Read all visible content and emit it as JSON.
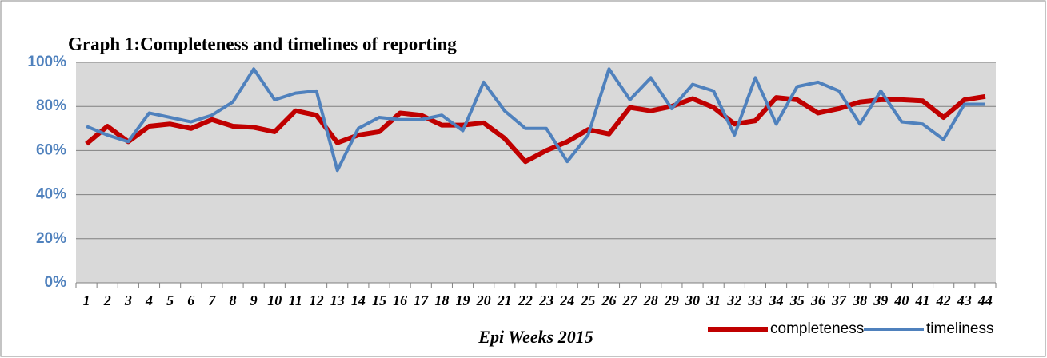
{
  "chart_data": {
    "type": "line",
    "title": "Graph 1:Completeness and timelines of reporting",
    "x_label": "Epi Weeks 2015",
    "categories": [
      "1",
      "2",
      "3",
      "4",
      "5",
      "6",
      "7",
      "8",
      "9",
      "10",
      "11",
      "12",
      "13",
      "14",
      "15",
      "16",
      "17",
      "18",
      "19",
      "20",
      "21",
      "22",
      "23",
      "24",
      "25",
      "26",
      "27",
      "28",
      "29",
      "30",
      "31",
      "32",
      "33",
      "34",
      "35",
      "36",
      "37",
      "38",
      "39",
      "40",
      "41",
      "42",
      "43",
      "44"
    ],
    "series": [
      {
        "name": "completeness",
        "color": "#c00000",
        "values": [
          63,
          71,
          64,
          71,
          72,
          70,
          74,
          71,
          70.5,
          68.5,
          78,
          76,
          63.5,
          67,
          68.5,
          77,
          76,
          71.5,
          71.5,
          72.5,
          65.5,
          55,
          60,
          64,
          69.5,
          67.5,
          79.5,
          78,
          80,
          83.5,
          79.5,
          72,
          73.5,
          84,
          83,
          77,
          79,
          82,
          83,
          83,
          82.5,
          75,
          83,
          84.5
        ]
      },
      {
        "name": "timeliness",
        "color": "#4f81bd",
        "values": [
          71,
          67,
          64,
          77,
          75,
          73,
          76,
          82,
          97,
          83,
          86,
          87,
          51,
          70,
          75,
          74,
          74,
          76,
          69,
          91,
          78,
          70,
          70,
          55,
          67,
          97,
          83,
          93,
          79,
          90,
          87,
          67,
          93,
          72,
          89,
          91,
          87,
          72,
          87,
          73,
          72,
          65,
          81,
          81
        ]
      }
    ],
    "ylim": [
      0,
      100
    ],
    "yticks": [
      {
        "value": 0,
        "label": "0%"
      },
      {
        "value": 20,
        "label": "20%"
      },
      {
        "value": 40,
        "label": "40%"
      },
      {
        "value": 60,
        "label": "60%"
      },
      {
        "value": 80,
        "label": "80%"
      },
      {
        "value": 100,
        "label": "100%"
      }
    ],
    "grid": true,
    "legend": "bottom-right"
  }
}
